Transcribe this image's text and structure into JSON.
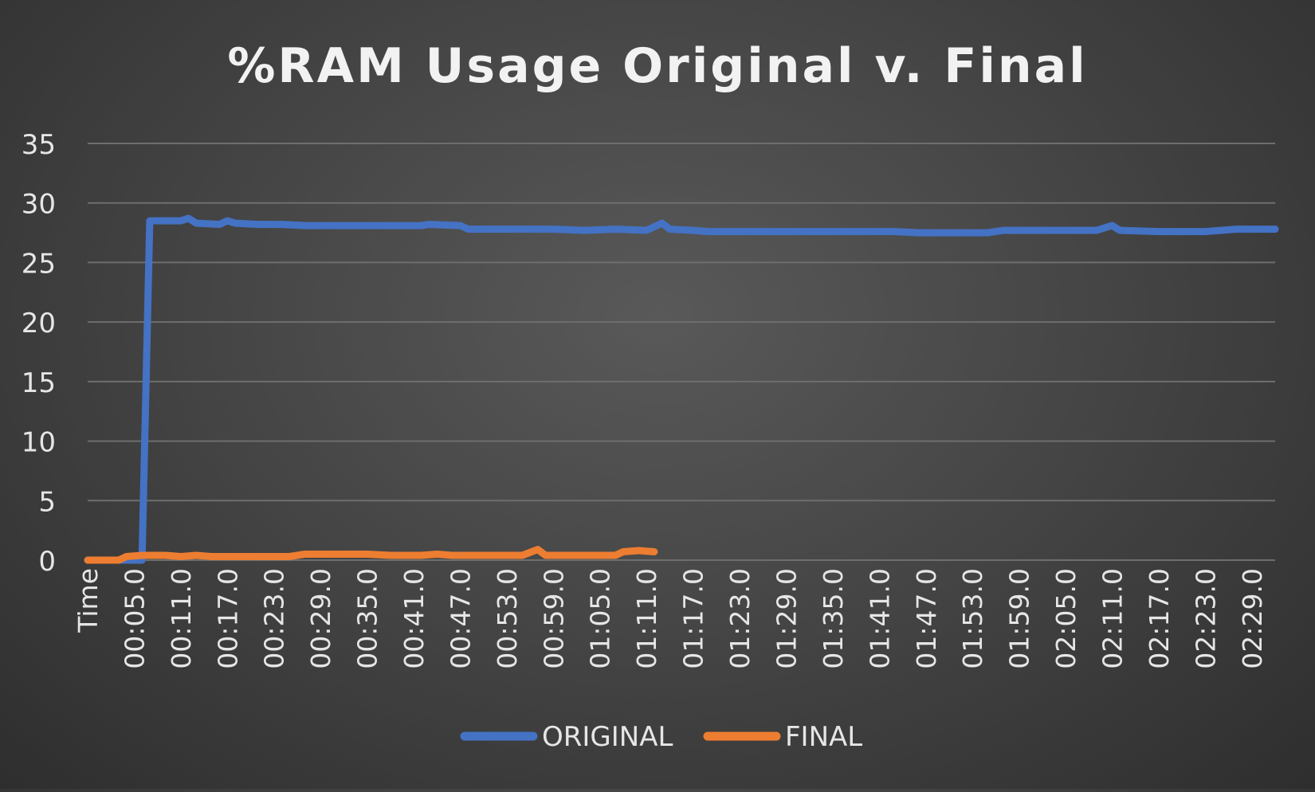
{
  "chart_data": {
    "type": "line",
    "title": "%RAM Usage Original v. Final",
    "xlabel": "",
    "ylabel": "",
    "x_count": 153,
    "ylim": [
      0,
      35
    ],
    "yticks": [
      0,
      5,
      10,
      15,
      20,
      25,
      30,
      35
    ],
    "grid": true,
    "legend": "bottom-center",
    "tick_labels": [
      {
        "index": 0,
        "label": "Time"
      },
      {
        "index": 6,
        "label": "00:05.0"
      },
      {
        "index": 12,
        "label": "00:11.0"
      },
      {
        "index": 18,
        "label": "00:17.0"
      },
      {
        "index": 24,
        "label": "00:23.0"
      },
      {
        "index": 30,
        "label": "00:29.0"
      },
      {
        "index": 36,
        "label": "00:35.0"
      },
      {
        "index": 42,
        "label": "00:41.0"
      },
      {
        "index": 48,
        "label": "00:47.0"
      },
      {
        "index": 54,
        "label": "00:53.0"
      },
      {
        "index": 60,
        "label": "00:59.0"
      },
      {
        "index": 66,
        "label": "01:05.0"
      },
      {
        "index": 72,
        "label": "01:11.0"
      },
      {
        "index": 78,
        "label": "01:17.0"
      },
      {
        "index": 84,
        "label": "01:23.0"
      },
      {
        "index": 90,
        "label": "01:29.0"
      },
      {
        "index": 96,
        "label": "01:35.0"
      },
      {
        "index": 102,
        "label": "01:41.0"
      },
      {
        "index": 108,
        "label": "01:47.0"
      },
      {
        "index": 114,
        "label": "01:53.0"
      },
      {
        "index": 120,
        "label": "01:59.0"
      },
      {
        "index": 126,
        "label": "02:05.0"
      },
      {
        "index": 132,
        "label": "02:11.0"
      },
      {
        "index": 138,
        "label": "02:17.0"
      },
      {
        "index": 144,
        "label": "02:23.0"
      },
      {
        "index": 150,
        "label": "02:29.0"
      }
    ],
    "series": [
      {
        "name": "ORIGINAL",
        "color": "#4472C4",
        "points": [
          [
            0,
            0
          ],
          [
            7,
            0
          ],
          [
            8,
            28.5
          ],
          [
            12,
            28.5
          ],
          [
            13,
            28.7
          ],
          [
            14,
            28.3
          ],
          [
            17,
            28.2
          ],
          [
            18,
            28.5
          ],
          [
            19,
            28.3
          ],
          [
            22,
            28.2
          ],
          [
            25,
            28.2
          ],
          [
            28,
            28.1
          ],
          [
            32,
            28.1
          ],
          [
            40,
            28.1
          ],
          [
            43,
            28.1
          ],
          [
            44,
            28.2
          ],
          [
            48,
            28.1
          ],
          [
            49,
            27.8
          ],
          [
            60,
            27.8
          ],
          [
            64,
            27.7
          ],
          [
            68,
            27.8
          ],
          [
            72,
            27.7
          ],
          [
            74,
            28.3
          ],
          [
            75,
            27.8
          ],
          [
            78,
            27.7
          ],
          [
            80,
            27.6
          ],
          [
            100,
            27.6
          ],
          [
            104,
            27.6
          ],
          [
            107,
            27.5
          ],
          [
            110,
            27.5
          ],
          [
            116,
            27.5
          ],
          [
            118,
            27.7
          ],
          [
            130,
            27.7
          ],
          [
            132,
            28.1
          ],
          [
            133,
            27.7
          ],
          [
            138,
            27.6
          ],
          [
            144,
            27.6
          ],
          [
            148,
            27.8
          ],
          [
            153,
            27.8
          ]
        ]
      },
      {
        "name": "FINAL",
        "color": "#ED7D31",
        "points": [
          [
            0,
            0
          ],
          [
            4,
            0
          ],
          [
            5,
            0.3
          ],
          [
            7,
            0.4
          ],
          [
            10,
            0.4
          ],
          [
            12,
            0.3
          ],
          [
            14,
            0.4
          ],
          [
            16,
            0.3
          ],
          [
            26,
            0.3
          ],
          [
            28,
            0.5
          ],
          [
            36,
            0.5
          ],
          [
            39,
            0.4
          ],
          [
            43,
            0.4
          ],
          [
            45,
            0.5
          ],
          [
            47,
            0.4
          ],
          [
            56,
            0.4
          ],
          [
            58,
            0.9
          ],
          [
            59,
            0.4
          ],
          [
            68,
            0.4
          ],
          [
            69,
            0.7
          ],
          [
            71,
            0.8
          ],
          [
            73,
            0.7
          ]
        ]
      }
    ]
  }
}
